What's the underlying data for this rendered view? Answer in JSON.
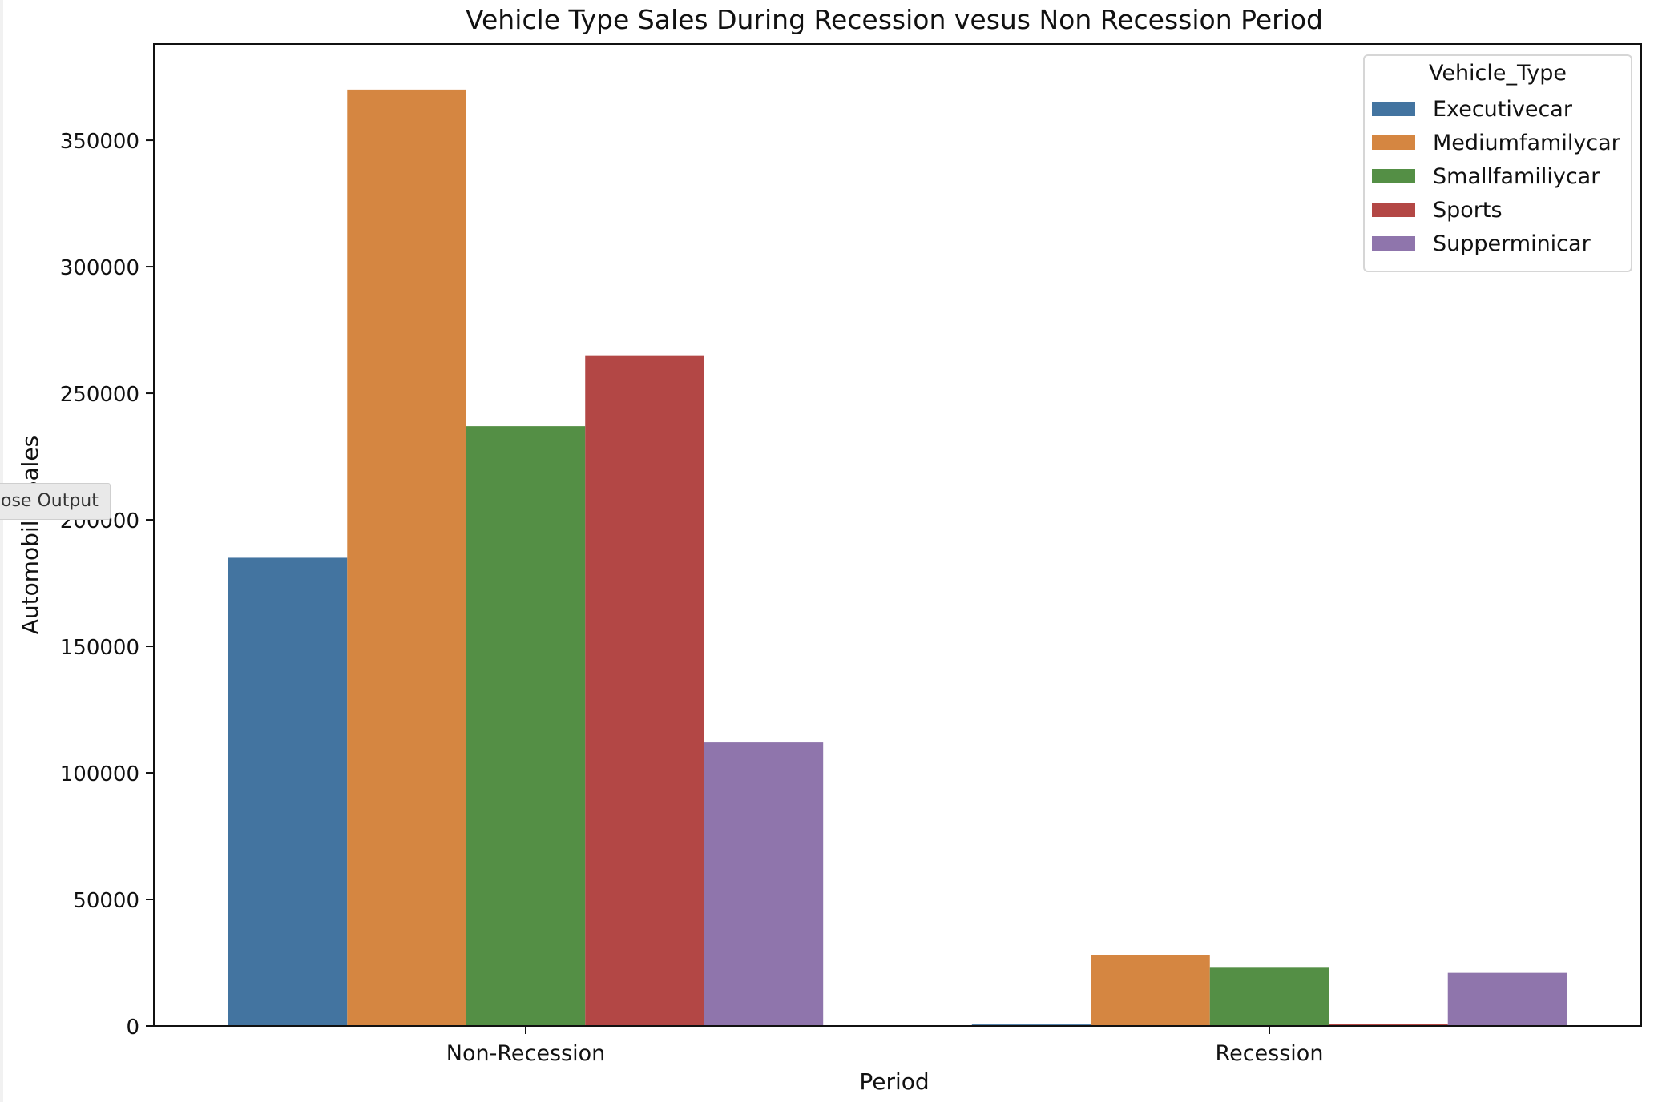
{
  "tooltip": {
    "label": "ose Output"
  },
  "chart_data": {
    "type": "bar",
    "title": "Vehicle Type Sales During Recession vesus Non Recession Period",
    "xlabel": "Period",
    "ylabel": "Automobile_Sales",
    "categories": [
      "Non-Recession",
      "Recession"
    ],
    "ylim": [
      0,
      388000
    ],
    "yticks": [
      0,
      50000,
      100000,
      150000,
      200000,
      250000,
      300000,
      350000
    ],
    "grid": false,
    "legend": {
      "title": "Vehicle_Type",
      "placement": "top-right"
    },
    "series": [
      {
        "name": "Executivecar",
        "color": "#4374a0",
        "values": [
          185000,
          600
        ]
      },
      {
        "name": "Mediumfamilycar",
        "color": "#d58641",
        "values": [
          370000,
          28000
        ]
      },
      {
        "name": "Smallfamiliycar",
        "color": "#548f45",
        "values": [
          237000,
          23000
        ]
      },
      {
        "name": "Sports",
        "color": "#b34745",
        "values": [
          265000,
          700
        ]
      },
      {
        "name": "Supperminicar",
        "color": "#8f75ac",
        "values": [
          112000,
          21000
        ]
      }
    ]
  }
}
